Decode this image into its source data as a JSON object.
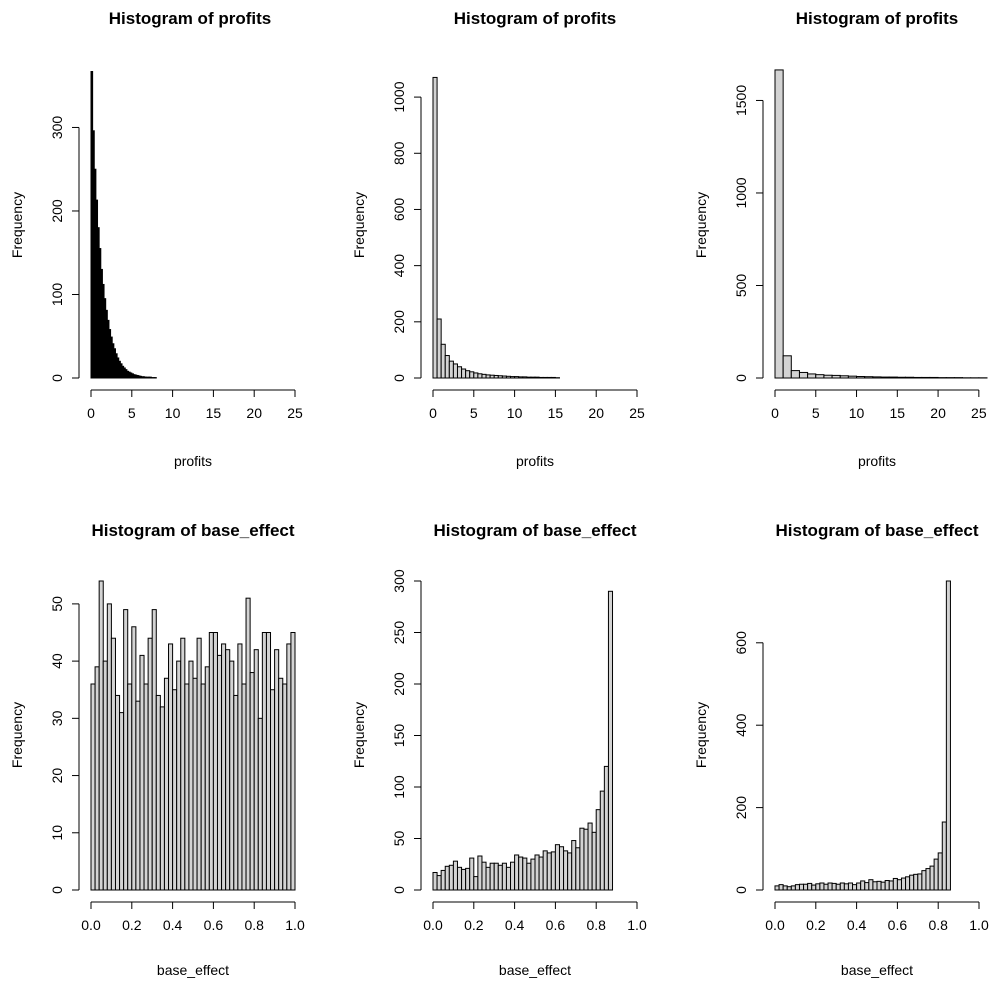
{
  "chart_data": [
    {
      "type": "bar",
      "title": "Histogram of profits",
      "xlabel": "profits",
      "ylabel": "Frequency",
      "xlim": [
        0,
        25
      ],
      "ylim": [
        0,
        370
      ],
      "xticks": [
        0,
        5,
        10,
        15,
        20,
        25
      ],
      "xtick_labels": [
        "0",
        "5",
        "10",
        "15",
        "20",
        "25"
      ],
      "yticks": [
        0,
        100,
        200,
        300
      ],
      "ytick_labels": [
        "0",
        "100",
        "200",
        "300"
      ],
      "bin_start": 0,
      "bin_width": 0.2,
      "values": [
        367,
        296,
        250,
        213,
        180,
        155,
        130,
        112,
        95,
        81,
        69,
        58,
        49,
        41,
        35,
        29,
        24,
        20,
        17,
        14,
        12,
        10,
        8,
        7,
        6,
        5,
        4,
        3.5,
        3,
        2.5,
        2,
        1.5,
        1.5,
        1,
        1,
        1,
        1,
        0.5,
        0.5,
        0.5
      ],
      "fill": "#000000"
    },
    {
      "type": "bar",
      "title": "Histogram of profits",
      "xlabel": "profits",
      "ylabel": "Frequency",
      "xlim": [
        0,
        25
      ],
      "ylim": [
        0,
        1100
      ],
      "xticks": [
        0,
        5,
        10,
        15,
        20,
        25
      ],
      "xtick_labels": [
        "0",
        "5",
        "10",
        "15",
        "20",
        "25"
      ],
      "yticks": [
        0,
        200,
        400,
        600,
        800,
        1000
      ],
      "ytick_labels": [
        "0",
        "200",
        "400",
        "600",
        "800",
        "1000"
      ],
      "bin_start": 0,
      "bin_width": 0.5,
      "values": [
        1070,
        210,
        120,
        80,
        60,
        50,
        40,
        32,
        26,
        22,
        18,
        15,
        13,
        11,
        10,
        9,
        8,
        7,
        6,
        5,
        5,
        4,
        4,
        3,
        3,
        3,
        2,
        2,
        2,
        2,
        1
      ],
      "fill": "#d3d3d3"
    },
    {
      "type": "bar",
      "title": "Histogram of profits",
      "xlabel": "profits",
      "ylabel": "Frequency",
      "xlim": [
        0,
        26
      ],
      "ylim": [
        0,
        1670
      ],
      "xticks": [
        0,
        5,
        10,
        15,
        20,
        25
      ],
      "xtick_labels": [
        "0",
        "5",
        "10",
        "15",
        "20",
        "25"
      ],
      "yticks": [
        0,
        500,
        1000,
        1500
      ],
      "ytick_labels": [
        "0",
        "500",
        "1000",
        "1500"
      ],
      "bin_start": 0,
      "bin_width": 1,
      "values": [
        1665,
        120,
        40,
        30,
        22,
        18,
        15,
        14,
        12,
        10,
        8,
        7,
        6,
        5,
        5,
        4,
        4,
        3,
        3,
        3,
        2,
        2,
        2,
        1,
        1,
        1
      ],
      "fill": "#d3d3d3"
    },
    {
      "type": "bar",
      "title": "Histogram of base_effect",
      "xlabel": "base_effect",
      "ylabel": "Frequency",
      "xlim": [
        0,
        1
      ],
      "ylim": [
        0,
        54
      ],
      "xticks": [
        0,
        0.2,
        0.4,
        0.6,
        0.8,
        1
      ],
      "xtick_labels": [
        "0.0",
        "0.2",
        "0.4",
        "0.6",
        "0.8",
        "1.0"
      ],
      "yticks": [
        0,
        10,
        20,
        30,
        40,
        50
      ],
      "ytick_labels": [
        "0",
        "10",
        "20",
        "30",
        "40",
        "50"
      ],
      "bin_start": 0,
      "bin_width": 0.02,
      "values": [
        36,
        39,
        54,
        40,
        50,
        44,
        34,
        31,
        49,
        36,
        46,
        33,
        41,
        36,
        44,
        49,
        34,
        32,
        37,
        43,
        35,
        40,
        44,
        36,
        40,
        37,
        44,
        36,
        39,
        45,
        45,
        41,
        43,
        42,
        40,
        34,
        43,
        36,
        51,
        38,
        42,
        30,
        45,
        45,
        35,
        42,
        37,
        36,
        43,
        45
      ],
      "fill": "#d3d3d3"
    },
    {
      "type": "bar",
      "title": "Histogram of base_effect",
      "xlabel": "base_effect",
      "ylabel": "Frequency",
      "xlim": [
        0,
        1
      ],
      "ylim": [
        0,
        300
      ],
      "xticks": [
        0,
        0.2,
        0.4,
        0.6,
        0.8,
        1
      ],
      "xtick_labels": [
        "0.0",
        "0.2",
        "0.4",
        "0.6",
        "0.8",
        "1.0"
      ],
      "yticks": [
        0,
        50,
        100,
        150,
        200,
        250,
        300
      ],
      "ytick_labels": [
        "0",
        "50",
        "100",
        "150",
        "200",
        "250",
        "300"
      ],
      "bin_start": 0,
      "bin_width": 0.02,
      "values": [
        17,
        14,
        19,
        23,
        24,
        28,
        22,
        20,
        21,
        31,
        13,
        33,
        27,
        22,
        26,
        26,
        24,
        26,
        22,
        27,
        34,
        32,
        31,
        26,
        30,
        34,
        32,
        38,
        36,
        37,
        44,
        42,
        38,
        36,
        48,
        41,
        60,
        59,
        65,
        56,
        78,
        96,
        120,
        290
      ],
      "fill": "#d3d3d3"
    },
    {
      "type": "bar",
      "title": "Histogram of base_effect",
      "xlabel": "base_effect",
      "ylabel": "Frequency",
      "xlim": [
        0,
        1
      ],
      "ylim": [
        0,
        750
      ],
      "xticks": [
        0,
        0.2,
        0.4,
        0.6,
        0.8,
        1
      ],
      "xtick_labels": [
        "0.0",
        "0.2",
        "0.4",
        "0.6",
        "0.8",
        "1.0"
      ],
      "yticks": [
        0,
        200,
        400,
        600
      ],
      "ytick_labels": [
        "0",
        "200",
        "400",
        "600"
      ],
      "bin_start": 0,
      "bin_width": 0.02,
      "values": [
        10,
        13,
        10,
        8,
        10,
        13,
        14,
        14,
        16,
        12,
        15,
        17,
        14,
        17,
        16,
        14,
        17,
        15,
        17,
        13,
        17,
        22,
        18,
        25,
        20,
        21,
        19,
        23,
        22,
        28,
        25,
        29,
        32,
        36,
        38,
        39,
        47,
        52,
        58,
        75,
        90,
        165,
        750
      ],
      "fill": "#d3d3d3"
    }
  ]
}
